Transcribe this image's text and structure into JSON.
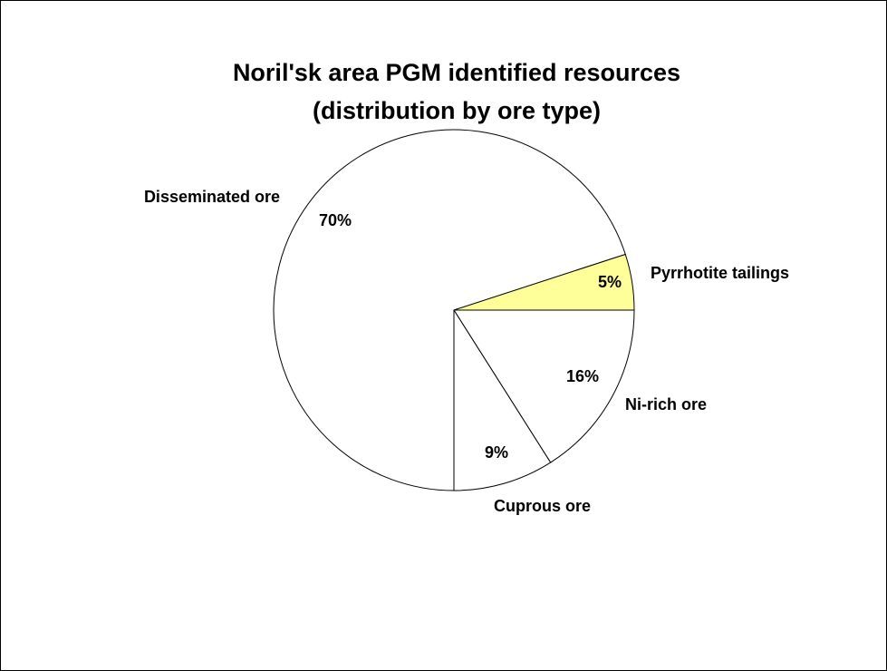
{
  "chart_data": {
    "type": "pie",
    "title": [
      "Noril'sk area PGM identified resources",
      "(distribution by ore type)"
    ],
    "categories": [
      "Ni-rich ore",
      "Cuprous ore",
      "Disseminated ore",
      "Pyrrhotite tailings"
    ],
    "values": [
      16,
      9,
      70,
      5
    ],
    "value_labels": [
      "16%",
      "9%",
      "70%",
      "5%"
    ],
    "colors": [
      "#ffffff",
      "#ffffff",
      "#ffffff",
      "#ffff99"
    ]
  }
}
